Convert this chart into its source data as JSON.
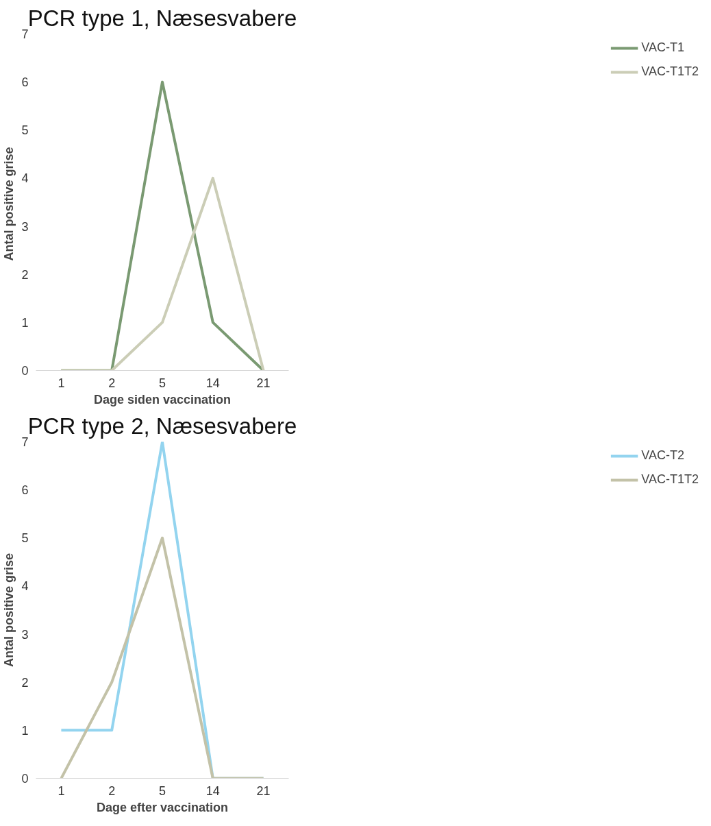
{
  "chart_data": [
    {
      "type": "line",
      "title": "PCR type 1, Næsesvabere",
      "xlabel": "Dage siden vaccination",
      "ylabel": "Antal positive  grise",
      "categories": [
        "1",
        "2",
        "5",
        "14",
        "21"
      ],
      "ylim": [
        0,
        7
      ],
      "yticks": [
        0,
        1,
        2,
        3,
        4,
        5,
        6,
        7
      ],
      "grid": false,
      "legend": "right",
      "marker": "none",
      "line_style": "solid",
      "series": [
        {
          "name": "VAC-T1",
          "color": "#7a9a72",
          "values": [
            0,
            0,
            6,
            1,
            0
          ]
        },
        {
          "name": "VAC-T1T2",
          "color": "#cbcdb6",
          "values": [
            0,
            0,
            1,
            4,
            0
          ]
        }
      ]
    },
    {
      "type": "line",
      "title": "PCR type 2, Næsesvabere",
      "xlabel": "Dage efter vaccination",
      "ylabel": "Antal positive grise",
      "categories": [
        "1",
        "2",
        "5",
        "14",
        "21"
      ],
      "ylim": [
        0,
        7
      ],
      "yticks": [
        0,
        1,
        2,
        3,
        4,
        5,
        6,
        7
      ],
      "grid": false,
      "legend": "right",
      "marker": "none",
      "line_style": "solid",
      "series": [
        {
          "name": "VAC-T2",
          "color": "#93d4ef",
          "values": [
            1,
            1,
            7,
            0,
            0
          ]
        },
        {
          "name": "VAC-T1T2",
          "color": "#c3c2a8",
          "values": [
            0,
            2,
            5,
            0,
            0
          ]
        }
      ]
    }
  ]
}
